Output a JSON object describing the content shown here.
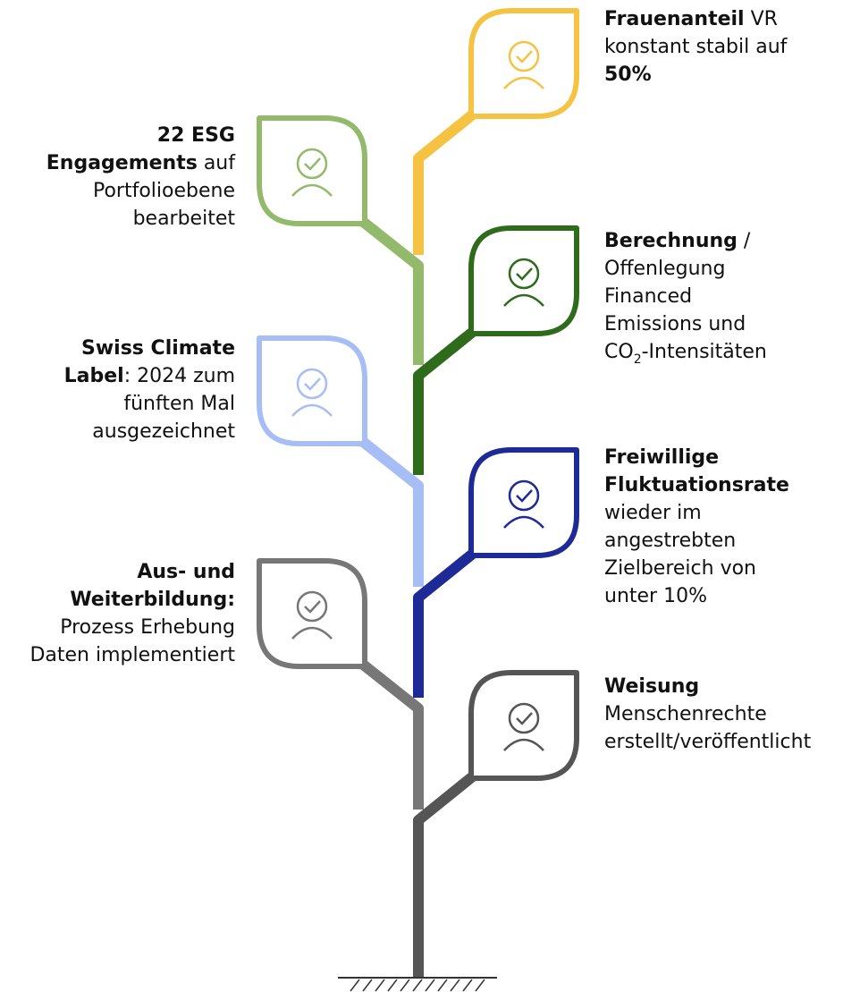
{
  "items": [
    {
      "side": "right",
      "color": "#f5c242",
      "lines": [
        [
          {
            "text": "Frauenanteil",
            "bold": true
          },
          {
            "text": " VR"
          }
        ],
        [
          {
            "text": "konstant stabil auf"
          }
        ],
        [
          {
            "text": "50%",
            "bold": true
          }
        ]
      ]
    },
    {
      "side": "left",
      "color": "#93b96a",
      "lines": [
        [
          {
            "text": "22 ESG",
            "bold": true
          }
        ],
        [
          {
            "text": "Engagements",
            "bold": true
          },
          {
            "text": " auf"
          }
        ],
        [
          {
            "text": "Portfolioebene"
          }
        ],
        [
          {
            "text": "bearbeitet"
          }
        ]
      ]
    },
    {
      "side": "right",
      "color": "#2e6b1b",
      "lines": [
        [
          {
            "text": "Berechnung",
            "bold": true
          },
          {
            "text": " /"
          }
        ],
        [
          {
            "text": "Offenlegung"
          }
        ],
        [
          {
            "text": "Financed"
          }
        ],
        [
          {
            "text": "Emissions und"
          }
        ],
        [
          {
            "text": "CO"
          },
          {
            "text": "2",
            "sub": true
          },
          {
            "text": "-Intensitäten"
          }
        ]
      ]
    },
    {
      "side": "left",
      "color": "#a6bef5",
      "lines": [
        [
          {
            "text": "Swiss Climate",
            "bold": true
          }
        ],
        [
          {
            "text": "Label",
            "bold": true
          },
          {
            "text": ": 2024 zum"
          }
        ],
        [
          {
            "text": "fünften Mal"
          }
        ],
        [
          {
            "text": "ausgezeichnet"
          }
        ]
      ]
    },
    {
      "side": "right",
      "color": "#1e2a96",
      "lines": [
        [
          {
            "text": "Freiwillige",
            "bold": true
          }
        ],
        [
          {
            "text": "Fluktuationsrate",
            "bold": true
          }
        ],
        [
          {
            "text": "wieder im"
          }
        ],
        [
          {
            "text": "angestrebten"
          }
        ],
        [
          {
            "text": "Zielbereich von"
          }
        ],
        [
          {
            "text": "unter 10%"
          }
        ]
      ]
    },
    {
      "side": "left",
      "color": "#777777",
      "lines": [
        [
          {
            "text": "Aus- und",
            "bold": true
          }
        ],
        [
          {
            "text": "Weiterbildung:",
            "bold": true
          }
        ],
        [
          {
            "text": "Prozess Erhebung"
          }
        ],
        [
          {
            "text": "Daten implementiert"
          }
        ]
      ]
    },
    {
      "side": "right",
      "color": "#555555",
      "lines": [
        [
          {
            "text": "Weisung",
            "bold": true
          }
        ],
        [
          {
            "text": "Menschenrechte"
          }
        ],
        [
          {
            "text": "erstellt/veröffentlicht"
          }
        ]
      ]
    }
  ]
}
